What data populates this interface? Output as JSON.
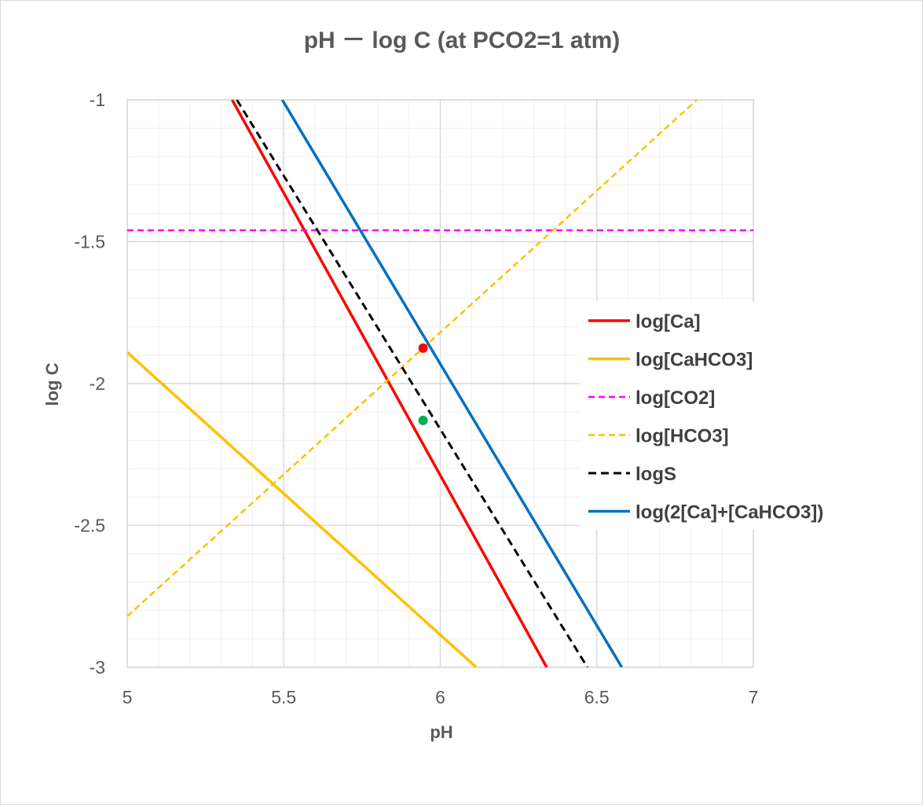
{
  "chart_data": {
    "type": "line",
    "title": "pH － log C (at PCO2=1 atm)",
    "xlabel": "pH",
    "ylabel": "log C",
    "xlim": [
      5,
      7
    ],
    "ylim": [
      -3,
      -1
    ],
    "xticks": [
      5,
      5.5,
      6,
      6.5,
      7
    ],
    "xtick_labels": [
      "5",
      "5.5",
      "6",
      "6.5",
      "7"
    ],
    "yticks": [
      -1,
      -1.5,
      -2,
      -2.5,
      -3
    ],
    "ytick_labels": [
      "-1",
      "-1.5",
      "-2",
      "-2.5",
      "-3"
    ],
    "grid": true,
    "legend_position": "right",
    "series": [
      {
        "name": "log[Ca]",
        "color": "#ff0000",
        "dash": "solid",
        "points": [
          [
            5.335,
            -1.0
          ],
          [
            6.34,
            -3.0
          ]
        ]
      },
      {
        "name": "log[CaHCO3]",
        "color": "#ffc000",
        "dash": "solid",
        "points": [
          [
            5.0,
            -1.89
          ],
          [
            6.115,
            -3.0
          ]
        ]
      },
      {
        "name": "log[CO2]",
        "color": "#ff00ff",
        "dash": "dashed",
        "points": [
          [
            5.0,
            -1.46
          ],
          [
            7.0,
            -1.46
          ]
        ]
      },
      {
        "name": "log[HCO3]",
        "color": "#ffc000",
        "dash": "dashed",
        "points": [
          [
            5.0,
            -2.82
          ],
          [
            6.82,
            -1.0
          ]
        ]
      },
      {
        "name": "logS",
        "color": "#000000",
        "dash": "dashed",
        "points": [
          [
            5.35,
            -1.0
          ],
          [
            6.47,
            -3.0
          ]
        ]
      },
      {
        "name": "log(2[Ca]+[CaHCO3])",
        "color": "#0070c0",
        "dash": "solid",
        "points": [
          [
            5.495,
            -1.0
          ],
          [
            6.58,
            -3.0
          ]
        ]
      }
    ],
    "markers": [
      {
        "name": "red-point",
        "x": 5.945,
        "y": -1.875,
        "color": "#ff0000"
      },
      {
        "name": "green-point",
        "x": 5.945,
        "y": -2.13,
        "color": "#00b050"
      }
    ]
  }
}
